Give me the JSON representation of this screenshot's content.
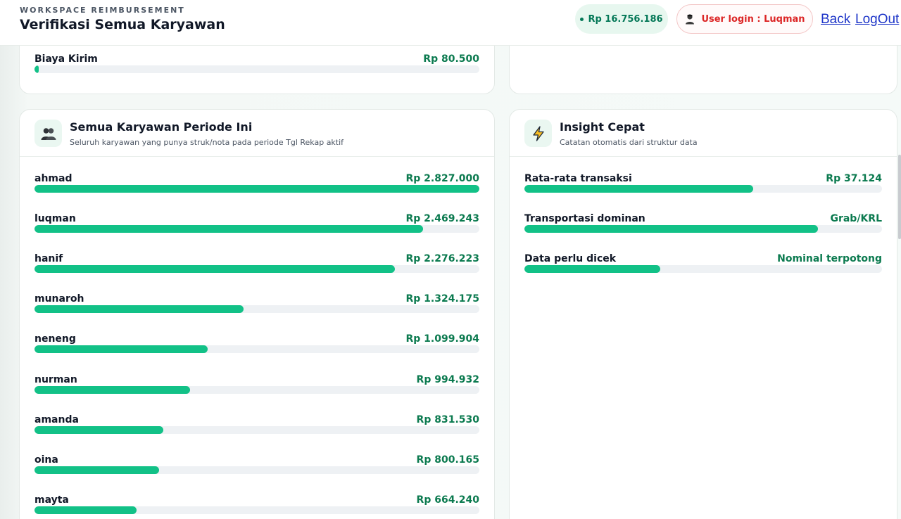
{
  "header": {
    "eyebrow": "WORKSPACE REIMBURSEMENT",
    "title": "Verifikasi Semua Karyawan",
    "total_amount": "Rp 16.756.186",
    "user_login": "User login : Luqman",
    "back_label": "Back",
    "logout_label": "LogOut"
  },
  "top_card": {
    "row": {
      "label": "Biaya Kirim",
      "value": "Rp 80.500",
      "fraction": 0.01
    }
  },
  "employees": {
    "title": "Semua Karyawan Periode Ini",
    "subtitle": "Seluruh karyawan yang punya struk/nota pada periode Tgl Rekap aktif",
    "rows": [
      {
        "name": "ahmad",
        "amount": "Rp 2.827.000",
        "fraction": 1.0
      },
      {
        "name": "luqman",
        "amount": "Rp 2.469.243",
        "fraction": 0.873
      },
      {
        "name": "hanif",
        "amount": "Rp 2.276.223",
        "fraction": 0.81
      },
      {
        "name": "munaroh",
        "amount": "Rp 1.324.175",
        "fraction": 0.47
      },
      {
        "name": "neneng",
        "amount": "Rp 1.099.904",
        "fraction": 0.39
      },
      {
        "name": "nurman",
        "amount": "Rp 994.932",
        "fraction": 0.35
      },
      {
        "name": "amanda",
        "amount": "Rp 831.530",
        "fraction": 0.29
      },
      {
        "name": "oina",
        "amount": "Rp 800.165",
        "fraction": 0.28
      },
      {
        "name": "mayta",
        "amount": "Rp 664.240",
        "fraction": 0.23
      }
    ]
  },
  "insight": {
    "title": "Insight Cepat",
    "subtitle": "Catatan otomatis dari struktur data",
    "rows": [
      {
        "label": "Rata-rata transaksi",
        "value": "Rp 37.124",
        "fraction": 0.64
      },
      {
        "label": "Transportasi dominan",
        "value": "Grab/KRL",
        "fraction": 0.82
      },
      {
        "label": "Data perlu dicek",
        "value": "Nominal terpotong",
        "fraction": 0.38
      }
    ]
  },
  "icons": {
    "employees": "users-icon",
    "insight": "lightning-icon",
    "user": "user-icon"
  },
  "colors": {
    "accent": "#12c187",
    "value_text": "#0b7a4f",
    "user_text": "#dc2626",
    "link": "#1d35c8"
  }
}
